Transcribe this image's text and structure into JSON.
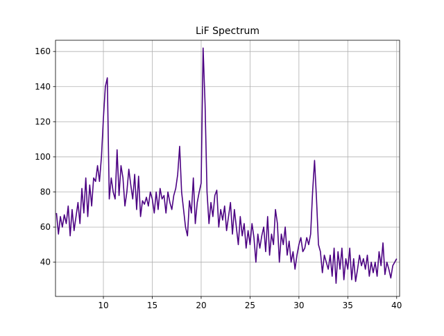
{
  "chart_data": {
    "type": "line",
    "title": "LiF Spectrum",
    "color": "#4b0082",
    "grid": true,
    "xlim": [
      5.1,
      40.3
    ],
    "ylim": [
      20.5,
      166.4
    ],
    "xticks": [
      10,
      15,
      20,
      25,
      30,
      35,
      40
    ],
    "yticks": [
      40,
      60,
      80,
      100,
      120,
      140,
      160
    ],
    "x": [
      5.2,
      5.4,
      5.6,
      5.8,
      6.0,
      6.2,
      6.4,
      6.6,
      6.8,
      7.0,
      7.2,
      7.4,
      7.6,
      7.8,
      8.0,
      8.2,
      8.4,
      8.6,
      8.8,
      9.0,
      9.2,
      9.4,
      9.6,
      9.8,
      10.0,
      10.2,
      10.4,
      10.6,
      10.8,
      11.0,
      11.2,
      11.4,
      11.6,
      11.8,
      12.0,
      12.2,
      12.4,
      12.6,
      12.8,
      13.0,
      13.2,
      13.4,
      13.6,
      13.8,
      14.0,
      14.2,
      14.4,
      14.6,
      14.8,
      15.0,
      15.2,
      15.4,
      15.6,
      15.8,
      16.0,
      16.2,
      16.4,
      16.6,
      16.8,
      17.0,
      17.2,
      17.4,
      17.6,
      17.8,
      18.0,
      18.2,
      18.4,
      18.6,
      18.8,
      19.0,
      19.2,
      19.4,
      19.6,
      19.8,
      20.0,
      20.2,
      20.4,
      20.6,
      20.8,
      21.0,
      21.2,
      21.4,
      21.6,
      21.8,
      22.0,
      22.2,
      22.4,
      22.6,
      22.8,
      23.0,
      23.2,
      23.4,
      23.6,
      23.8,
      24.0,
      24.2,
      24.4,
      24.6,
      24.8,
      25.0,
      25.2,
      25.4,
      25.6,
      25.8,
      26.0,
      26.2,
      26.4,
      26.6,
      26.8,
      27.0,
      27.2,
      27.4,
      27.6,
      27.8,
      28.0,
      28.2,
      28.4,
      28.6,
      28.8,
      29.0,
      29.2,
      29.4,
      29.6,
      29.8,
      30.0,
      30.2,
      30.4,
      30.6,
      30.8,
      31.0,
      31.2,
      31.4,
      31.6,
      31.8,
      32.0,
      32.2,
      32.4,
      32.6,
      32.8,
      33.0,
      33.2,
      33.4,
      33.6,
      33.8,
      34.0,
      34.2,
      34.4,
      34.6,
      34.8,
      35.0,
      35.2,
      35.4,
      35.6,
      35.8,
      36.0,
      36.2,
      36.4,
      36.6,
      36.8,
      37.0,
      37.2,
      37.4,
      37.6,
      37.8,
      38.0,
      38.2,
      38.4,
      38.6,
      38.8,
      39.0,
      39.2,
      39.4,
      39.6,
      39.8,
      40.0
    ],
    "values": [
      68,
      56,
      66,
      60,
      67,
      62,
      72,
      55,
      70,
      58,
      66,
      74,
      62,
      82,
      68,
      88,
      66,
      84,
      72,
      88,
      86,
      95,
      86,
      100,
      122,
      140,
      145,
      76,
      88,
      80,
      76,
      104,
      78,
      95,
      88,
      72,
      80,
      93,
      84,
      76,
      90,
      70,
      89,
      66,
      75,
      73,
      77,
      72,
      80,
      76,
      68,
      80,
      70,
      82,
      76,
      78,
      68,
      80,
      74,
      70,
      78,
      82,
      90,
      106,
      80,
      70,
      60,
      55,
      75,
      68,
      88,
      62,
      74,
      80,
      85,
      162,
      130,
      80,
      62,
      74,
      66,
      78,
      81,
      60,
      70,
      64,
      72,
      58,
      66,
      74,
      56,
      70,
      60,
      50,
      66,
      55,
      62,
      48,
      58,
      50,
      62,
      54,
      40,
      56,
      48,
      55,
      60,
      46,
      66,
      44,
      56,
      50,
      70,
      62,
      40,
      56,
      50,
      60,
      44,
      52,
      40,
      46,
      36,
      44,
      50,
      54,
      46,
      48,
      54,
      50,
      56,
      80,
      98,
      76,
      50,
      46,
      34,
      44,
      40,
      36,
      44,
      32,
      48,
      28,
      46,
      36,
      48,
      30,
      42,
      36,
      48,
      30,
      42,
      29,
      36,
      44,
      38,
      42,
      36,
      44,
      32,
      40,
      34,
      40,
      32,
      46,
      38,
      51,
      33,
      40,
      36,
      31,
      38,
      40,
      42
    ]
  }
}
